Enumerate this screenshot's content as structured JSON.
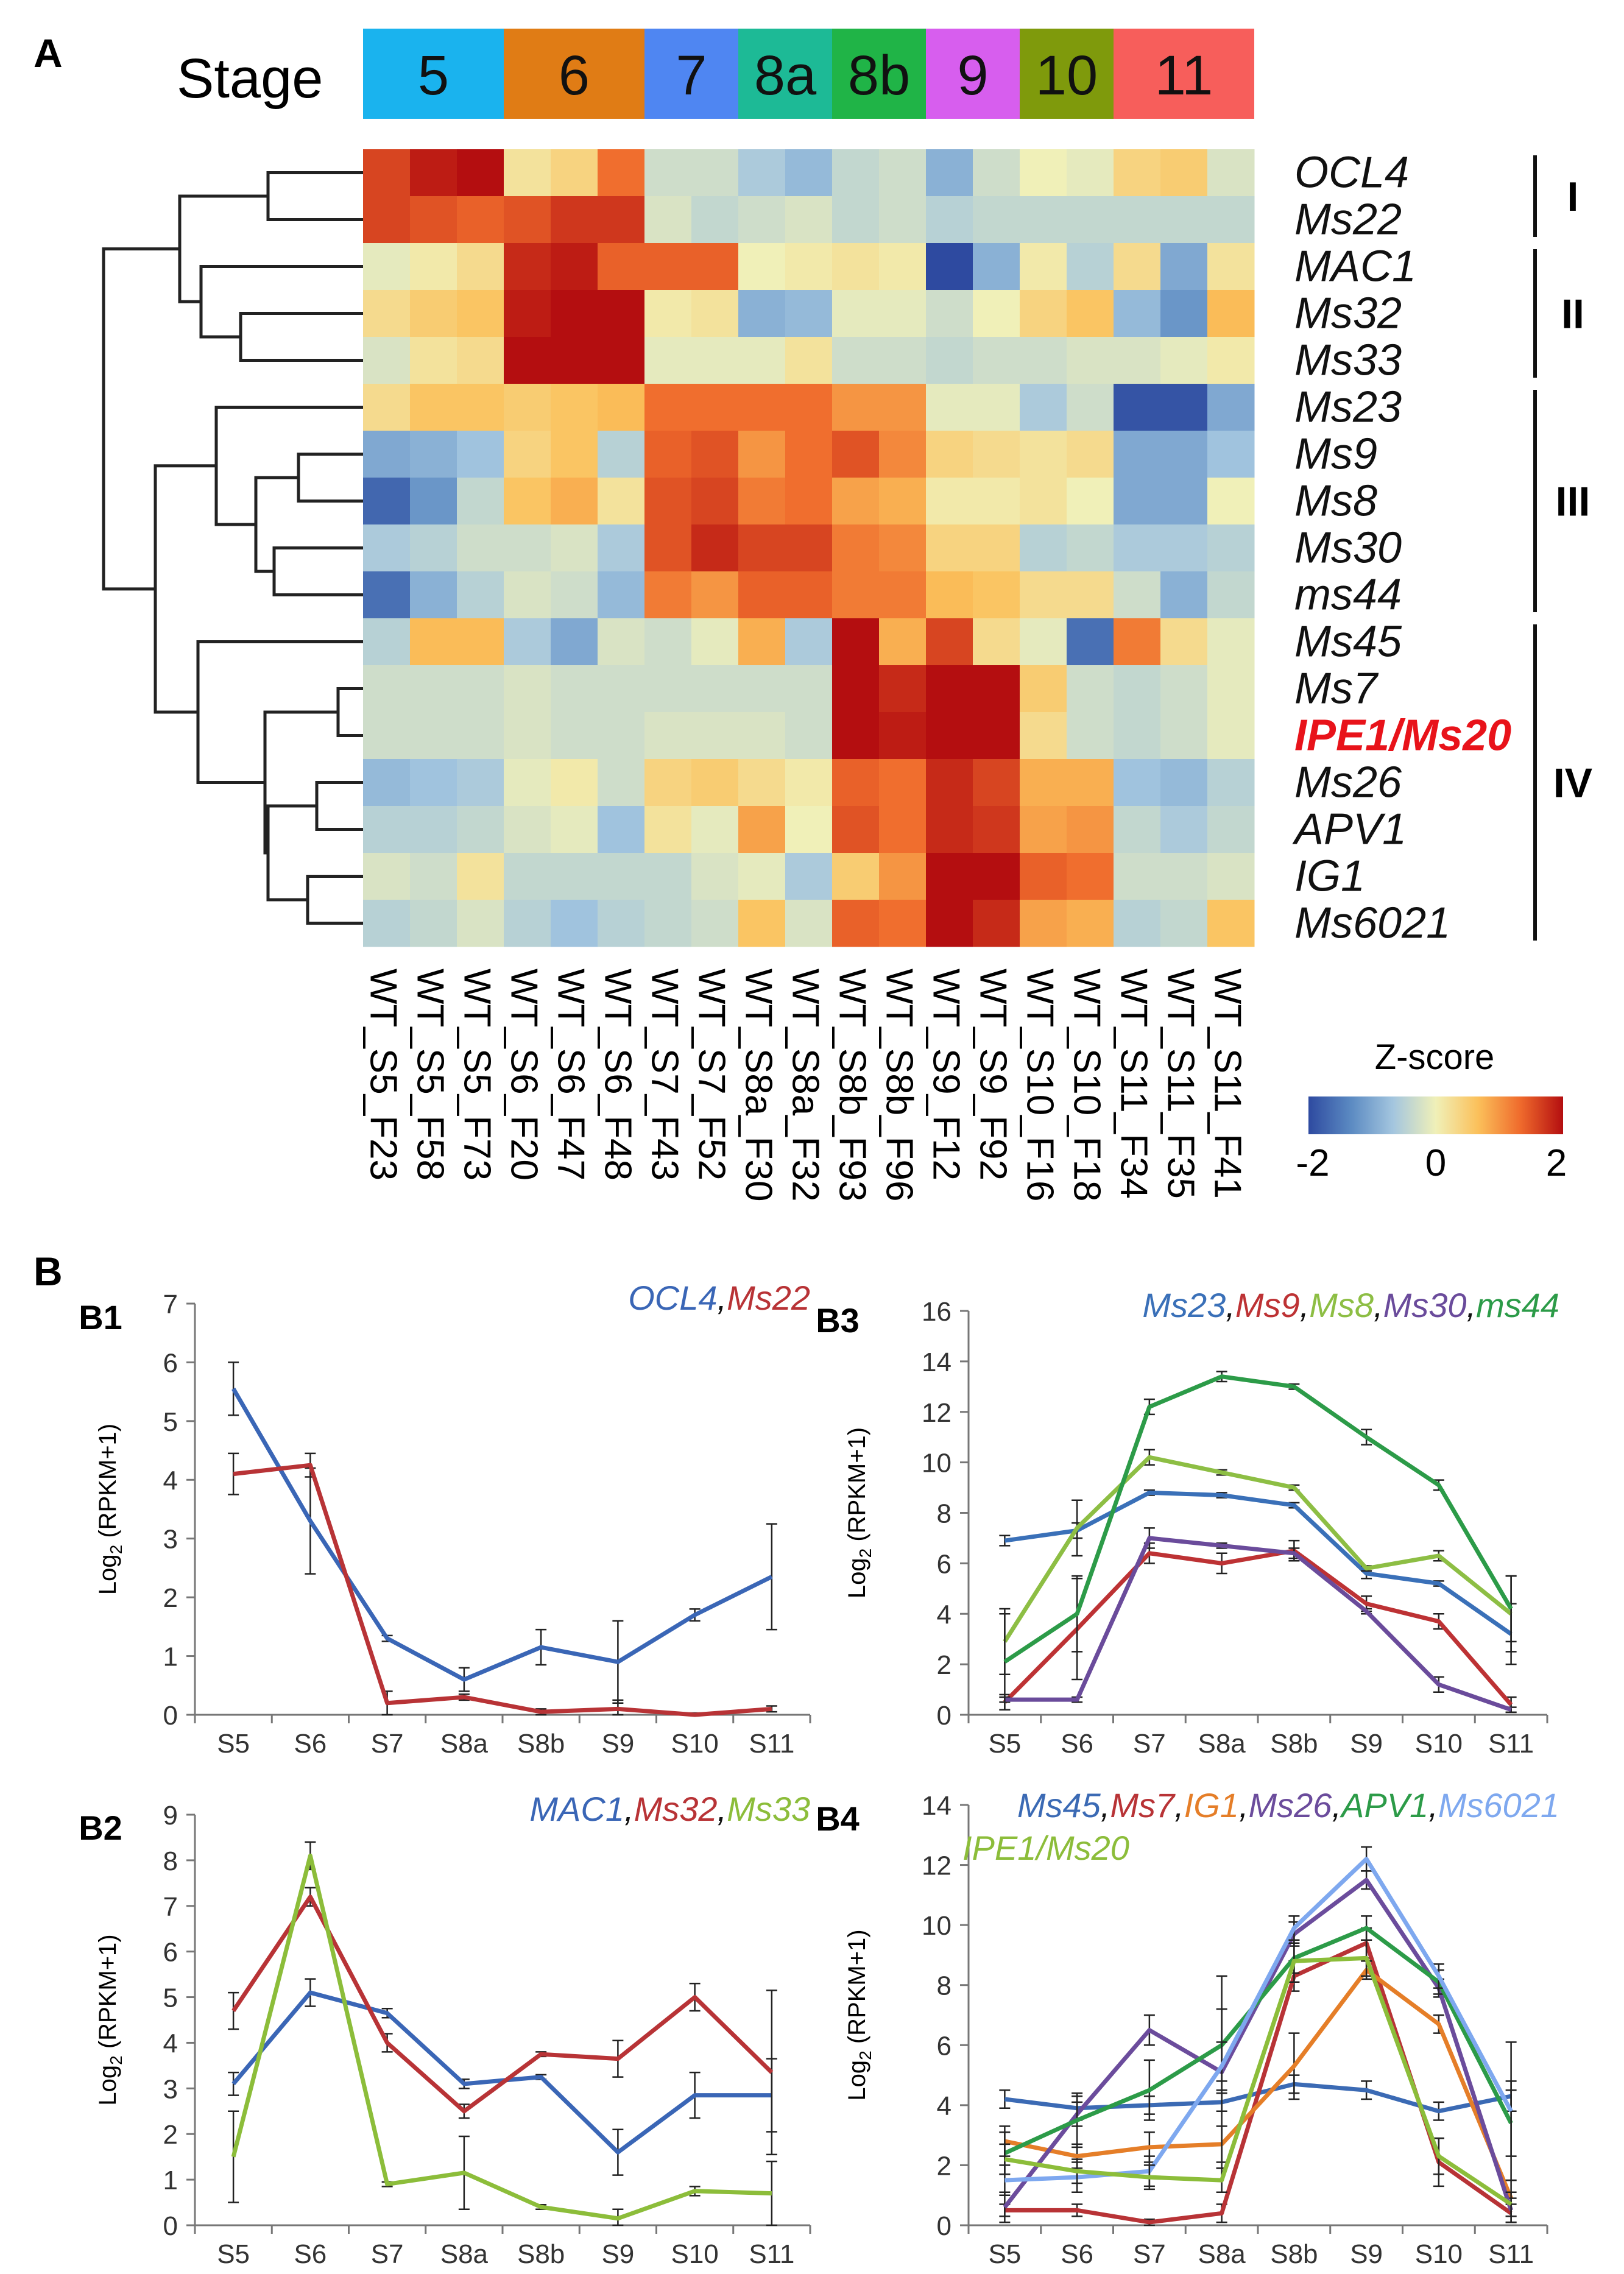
{
  "panels": {
    "a": "A",
    "b": "B"
  },
  "stage_bar": {
    "label": "Stage",
    "stages": [
      {
        "label": "5",
        "color": "#1ab3ee",
        "span": 3
      },
      {
        "label": "6",
        "color": "#e07c15",
        "span": 3
      },
      {
        "label": "7",
        "color": "#4f86f2",
        "span": 2
      },
      {
        "label": "8a",
        "color": "#1dba96",
        "span": 2
      },
      {
        "label": "8b",
        "color": "#20b447",
        "span": 2
      },
      {
        "label": "9",
        "color": "#d75eee",
        "span": 2
      },
      {
        "label": "10",
        "color": "#7f9a0c",
        "span": 2
      },
      {
        "label": "11",
        "color": "#f75e5b",
        "span": 3
      }
    ]
  },
  "heatmap": {
    "columns": [
      "WT_S5_F23",
      "WT_S5_F58",
      "WT_S5_F73",
      "WT_S6_F20",
      "WT_S6_F47",
      "WT_S6_F48",
      "WT_S7_F43",
      "WT_S7_F52",
      "WT_S8a_F30",
      "WT_S8a_F32",
      "WT_S8b_F93",
      "WT_S8b_F96",
      "WT_S9_F12",
      "WT_S9_F92",
      "WT_S10_F16",
      "WT_S10_F18",
      "WT_S11_F34",
      "WT_S11_F35",
      "WT_S11_F41"
    ],
    "rows": [
      {
        "gene": "OCL4",
        "highlight": false,
        "z": [
          1.6,
          1.9,
          2.0,
          0.2,
          0.4,
          1.3,
          -0.3,
          -0.3,
          -0.6,
          -0.8,
          -0.4,
          -0.3,
          -0.9,
          -0.3,
          0.0,
          -0.1,
          0.4,
          0.5,
          -0.2
        ]
      },
      {
        "gene": "Ms22",
        "highlight": false,
        "z": [
          1.6,
          1.5,
          1.4,
          1.5,
          1.7,
          1.7,
          -0.2,
          -0.4,
          -0.3,
          -0.2,
          -0.4,
          -0.3,
          -0.5,
          -0.4,
          -0.4,
          -0.4,
          -0.4,
          -0.4,
          -0.4
        ]
      },
      {
        "gene": "MAC1",
        "highlight": false,
        "z": [
          -0.1,
          0.1,
          0.3,
          1.8,
          1.9,
          1.4,
          1.4,
          1.4,
          0.0,
          0.1,
          0.2,
          0.1,
          -2.0,
          -0.9,
          0.1,
          -0.5,
          0.3,
          -1.0,
          0.2
        ]
      },
      {
        "gene": "Ms32",
        "highlight": false,
        "z": [
          0.3,
          0.5,
          0.6,
          1.9,
          2.0,
          2.0,
          0.1,
          0.2,
          -0.9,
          -0.8,
          -0.1,
          -0.1,
          -0.3,
          0.0,
          0.4,
          0.6,
          -0.8,
          -1.2,
          0.7
        ]
      },
      {
        "gene": "Ms33",
        "highlight": false,
        "z": [
          -0.2,
          0.2,
          0.3,
          2.0,
          2.0,
          2.0,
          -0.1,
          -0.1,
          -0.1,
          0.2,
          -0.3,
          -0.3,
          -0.4,
          -0.3,
          -0.3,
          -0.2,
          -0.2,
          -0.1,
          0.1
        ]
      },
      {
        "gene": "Ms23",
        "highlight": false,
        "z": [
          0.3,
          0.6,
          0.6,
          0.5,
          0.6,
          0.7,
          1.3,
          1.3,
          1.3,
          1.3,
          1.0,
          1.0,
          -0.1,
          -0.1,
          -0.6,
          -0.3,
          -1.9,
          -1.9,
          -1.0
        ]
      },
      {
        "gene": "Ms9",
        "highlight": false,
        "z": [
          -1.0,
          -0.9,
          -0.7,
          0.4,
          0.6,
          -0.5,
          1.4,
          1.5,
          1.0,
          1.3,
          1.5,
          1.1,
          0.4,
          0.3,
          0.2,
          0.3,
          -1.0,
          -1.0,
          -0.7
        ]
      },
      {
        "gene": "Ms8",
        "highlight": false,
        "z": [
          -1.7,
          -1.2,
          -0.4,
          0.6,
          0.8,
          0.2,
          1.5,
          1.6,
          1.2,
          1.3,
          0.9,
          0.8,
          0.1,
          0.1,
          0.2,
          0.0,
          -1.0,
          -1.0,
          0.0
        ]
      },
      {
        "gene": "Ms30",
        "highlight": false,
        "z": [
          -0.6,
          -0.5,
          -0.3,
          -0.3,
          -0.2,
          -0.6,
          1.5,
          1.8,
          1.6,
          1.6,
          1.2,
          1.1,
          0.4,
          0.4,
          -0.5,
          -0.4,
          -0.6,
          -0.6,
          -0.5
        ]
      },
      {
        "gene": "ms44",
        "highlight": false,
        "z": [
          -1.6,
          -0.9,
          -0.5,
          -0.2,
          -0.3,
          -0.8,
          1.2,
          1.0,
          1.4,
          1.4,
          1.2,
          1.2,
          0.7,
          0.6,
          0.3,
          0.3,
          -0.3,
          -0.9,
          -0.4
        ]
      },
      {
        "gene": "Ms45",
        "highlight": false,
        "z": [
          -0.5,
          0.7,
          0.7,
          -0.6,
          -1.0,
          -0.2,
          -0.3,
          -0.1,
          0.8,
          -0.6,
          2.0,
          0.8,
          1.6,
          0.3,
          -0.1,
          -1.6,
          1.2,
          0.3,
          -0.1
        ]
      },
      {
        "gene": "Ms7",
        "highlight": false,
        "z": [
          -0.3,
          -0.3,
          -0.3,
          -0.2,
          -0.3,
          -0.3,
          -0.3,
          -0.3,
          -0.3,
          -0.3,
          2.0,
          1.8,
          2.0,
          2.0,
          0.5,
          -0.3,
          -0.4,
          -0.3,
          -0.1
        ]
      },
      {
        "gene": "IPE1/Ms20",
        "highlight": true,
        "z": [
          -0.3,
          -0.3,
          -0.3,
          -0.2,
          -0.3,
          -0.3,
          -0.2,
          -0.2,
          -0.2,
          -0.3,
          2.0,
          1.9,
          2.0,
          2.0,
          0.3,
          -0.3,
          -0.4,
          -0.3,
          -0.1
        ]
      },
      {
        "gene": "Ms26",
        "highlight": false,
        "z": [
          -0.8,
          -0.7,
          -0.6,
          -0.1,
          0.1,
          -0.3,
          0.4,
          0.5,
          0.3,
          0.1,
          1.4,
          1.3,
          1.8,
          1.6,
          0.8,
          0.8,
          -0.7,
          -0.8,
          -0.5
        ]
      },
      {
        "gene": "APV1",
        "highlight": false,
        "z": [
          -0.5,
          -0.5,
          -0.4,
          -0.2,
          -0.1,
          -0.7,
          0.2,
          -0.1,
          0.9,
          0.0,
          1.5,
          1.3,
          1.8,
          1.7,
          0.9,
          1.0,
          -0.4,
          -0.6,
          -0.4
        ]
      },
      {
        "gene": "IG1",
        "highlight": false,
        "z": [
          -0.2,
          -0.3,
          0.2,
          -0.4,
          -0.4,
          -0.4,
          -0.4,
          -0.2,
          -0.1,
          -0.6,
          0.5,
          1.0,
          2.0,
          2.0,
          1.4,
          1.3,
          -0.3,
          -0.3,
          -0.2
        ]
      },
      {
        "gene": "Ms6021",
        "highlight": false,
        "z": [
          -0.5,
          -0.4,
          -0.2,
          -0.5,
          -0.7,
          -0.5,
          -0.4,
          -0.3,
          0.6,
          -0.2,
          1.4,
          1.3,
          2.0,
          1.8,
          0.9,
          0.8,
          -0.5,
          -0.4,
          0.6
        ]
      }
    ],
    "clusters": [
      {
        "label": "I",
        "from": 0,
        "to": 1
      },
      {
        "label": "II",
        "from": 2,
        "to": 4
      },
      {
        "label": "III",
        "from": 5,
        "to": 9
      },
      {
        "label": "IV",
        "from": 10,
        "to": 16
      }
    ],
    "colorbar": {
      "title": "Z-score",
      "min": -2,
      "mid": 0,
      "max": 2,
      "ticks": [
        "-2",
        "0",
        "2"
      ],
      "colors": [
        "#2e4aa0",
        "#5b8ac2",
        "#a4c6df",
        "#f0f0b8",
        "#fbc05a",
        "#ef6a2c",
        "#b40e10"
      ]
    }
  },
  "chart_data": [
    {
      "id": "B1",
      "type": "line",
      "title": "OCL4, Ms22",
      "xlabel": "",
      "ylabel": "Log2 (RPKM+1)",
      "ylabel_main": "Log",
      "ylabel_sub": "2",
      "ylabel_rest": " (RPKM+1)",
      "categories": [
        "S5",
        "S6",
        "S7",
        "S8a",
        "S8b",
        "S9",
        "S10",
        "S11"
      ],
      "ylim": [
        0,
        7
      ],
      "yticks": [
        0,
        1,
        2,
        3,
        4,
        5,
        6,
        7
      ],
      "series": [
        {
          "name": "OCL4",
          "color": "#3a66b6",
          "values": [
            5.55,
            3.3,
            1.3,
            0.6,
            1.15,
            0.9,
            1.7,
            2.35
          ],
          "err": [
            0.45,
            0.9,
            0.05,
            0.2,
            0.3,
            0.7,
            0.1,
            0.9
          ]
        },
        {
          "name": "Ms22",
          "color": "#b83336",
          "values": [
            4.1,
            4.25,
            0.2,
            0.3,
            0.05,
            0.1,
            0.0,
            0.1
          ],
          "err": [
            0.35,
            0.2,
            0.2,
            0.05,
            0.05,
            0.15,
            0.03,
            0.05
          ]
        }
      ]
    },
    {
      "id": "B2",
      "type": "line",
      "title": "MAC1, Ms32, Ms33",
      "xlabel": "",
      "ylabel": "Log2 (RPKM+1)",
      "ylabel_main": "Log",
      "ylabel_sub": "2",
      "ylabel_rest": " (RPKM+1)",
      "categories": [
        "S5",
        "S6",
        "S7",
        "S8a",
        "S8b",
        "S9",
        "S10",
        "S11"
      ],
      "ylim": [
        0,
        9
      ],
      "yticks": [
        0,
        1,
        2,
        3,
        4,
        5,
        6,
        7,
        8,
        9
      ],
      "series": [
        {
          "name": "MAC1",
          "color": "#3a66b6",
          "values": [
            3.1,
            5.1,
            4.65,
            3.1,
            3.25,
            1.6,
            2.85,
            2.85
          ],
          "err": [
            0.25,
            0.3,
            0.1,
            0.1,
            0.05,
            0.5,
            0.5,
            0.8
          ]
        },
        {
          "name": "Ms32",
          "color": "#b83336",
          "values": [
            4.7,
            7.2,
            4.0,
            2.5,
            3.75,
            3.65,
            5.0,
            3.35
          ],
          "err": [
            0.4,
            0.2,
            0.2,
            0.15,
            0.05,
            0.4,
            0.3,
            1.8
          ]
        },
        {
          "name": "Ms33",
          "color": "#8cbd3a",
          "values": [
            1.5,
            8.1,
            0.9,
            1.15,
            0.4,
            0.15,
            0.75,
            0.7
          ],
          "err": [
            1.0,
            0.3,
            0.05,
            0.8,
            0.05,
            0.2,
            0.1,
            0.7
          ]
        }
      ]
    },
    {
      "id": "B3",
      "type": "line",
      "title": "Ms23, Ms9, Ms8, Ms30, ms44",
      "xlabel": "",
      "ylabel": "Log2 (RPKM+1)",
      "ylabel_main": "Log",
      "ylabel_sub": "2",
      "ylabel_rest": " (RPKM+1)",
      "categories": [
        "S5",
        "S6",
        "S7",
        "S8a",
        "S8b",
        "S9",
        "S10",
        "S11"
      ],
      "ylim": [
        0,
        16
      ],
      "yticks": [
        0,
        2,
        4,
        6,
        8,
        10,
        12,
        14,
        16
      ],
      "series": [
        {
          "name": "Ms23",
          "color": "#3a70b8",
          "values": [
            6.9,
            7.3,
            8.8,
            8.7,
            8.3,
            5.6,
            5.2,
            3.2
          ],
          "err": [
            0.2,
            0.3,
            0.1,
            0.1,
            0.1,
            0.2,
            0.1,
            1.2
          ]
        },
        {
          "name": "Ms9",
          "color": "#bd3234",
          "values": [
            0.5,
            3.4,
            6.4,
            6.0,
            6.5,
            4.4,
            3.7,
            0.4
          ],
          "err": [
            0.3,
            2.0,
            0.4,
            0.4,
            0.4,
            0.3,
            0.3,
            0.3
          ]
        },
        {
          "name": "Ms8",
          "color": "#8dbe44",
          "values": [
            2.9,
            7.4,
            10.2,
            9.6,
            9.0,
            5.8,
            6.3,
            4.0
          ],
          "err": [
            1.3,
            1.1,
            0.3,
            0.1,
            0.1,
            0.1,
            0.2,
            1.5
          ]
        },
        {
          "name": "Ms30",
          "color": "#6a4b9b",
          "values": [
            0.6,
            0.6,
            7.0,
            6.7,
            6.4,
            4.1,
            1.2,
            0.2
          ],
          "err": [
            0.1,
            0.1,
            0.4,
            0.1,
            0.2,
            0.1,
            0.3,
            0.1
          ]
        },
        {
          "name": "ms44",
          "color": "#2c9b48",
          "values": [
            2.1,
            4.0,
            12.2,
            13.4,
            13.0,
            11.0,
            9.1,
            4.2
          ],
          "err": [
            1.9,
            1.5,
            0.3,
            0.2,
            0.1,
            0.3,
            0.2,
            1.3
          ]
        }
      ]
    },
    {
      "id": "B4",
      "type": "line",
      "title": "Ms45, Ms7, IG1, Ms26, APV1, Ms6021",
      "title_line2": "IPE1/Ms20",
      "xlabel": "",
      "ylabel": "Log2 (RPKM+1)",
      "ylabel_main": "Log",
      "ylabel_sub": "2",
      "ylabel_rest": " (RPKM+1)",
      "categories": [
        "S5",
        "S6",
        "S7",
        "S8a",
        "S8b",
        "S9",
        "S10",
        "S11"
      ],
      "ylim": [
        0,
        14
      ],
      "yticks": [
        0,
        2,
        4,
        6,
        8,
        10,
        12,
        14
      ],
      "series": [
        {
          "name": "Ms45",
          "color": "#3b6ab4",
          "values": [
            4.2,
            3.9,
            4.0,
            4.1,
            4.7,
            4.5,
            3.8,
            4.3
          ],
          "err": [
            0.3,
            0.4,
            0.3,
            0.3,
            0.3,
            0.3,
            0.3,
            0.5
          ]
        },
        {
          "name": "Ms7",
          "color": "#b83336",
          "values": [
            0.5,
            0.5,
            0.1,
            0.4,
            8.3,
            9.4,
            2.1,
            0.4
          ],
          "err": [
            0.2,
            0.2,
            0.1,
            0.3,
            0.5,
            0.5,
            0.8,
            0.3
          ]
        },
        {
          "name": "IG1",
          "color": "#e57e28",
          "values": [
            2.8,
            2.3,
            2.6,
            2.7,
            5.3,
            8.5,
            6.7,
            0.9
          ],
          "err": [
            0.5,
            0.4,
            0.5,
            0.6,
            1.1,
            0.3,
            0.3,
            0.6
          ]
        },
        {
          "name": "Ms26",
          "color": "#6b4c9c",
          "values": [
            0.6,
            3.7,
            6.5,
            5.1,
            9.7,
            11.5,
            7.9,
            0.5
          ],
          "err": [
            0.5,
            0.4,
            0.5,
            3.2,
            0.4,
            0.3,
            0.3,
            0.4
          ]
        },
        {
          "name": "APV1",
          "color": "#2c9b48",
          "values": [
            2.4,
            3.5,
            4.5,
            6.0,
            8.9,
            9.9,
            8.1,
            3.4
          ],
          "err": [
            0.7,
            0.9,
            1.0,
            1.2,
            0.5,
            0.4,
            0.4,
            1.1
          ]
        },
        {
          "name": "Ms6021",
          "color": "#7ea8ef",
          "values": [
            1.5,
            1.6,
            1.8,
            5.3,
            9.9,
            12.2,
            8.3,
            3.8
          ],
          "err": [
            0.5,
            0.5,
            0.5,
            0.8,
            0.4,
            0.4,
            0.4,
            2.3
          ]
        },
        {
          "name": "IPE1/Ms20",
          "color": "#8cbd3a",
          "values": [
            2.2,
            1.8,
            1.6,
            1.5,
            8.8,
            8.9,
            2.3,
            0.7
          ],
          "err": [
            0.5,
            0.4,
            0.4,
            0.4,
            0.7,
            0.6,
            0.6,
            0.4
          ]
        }
      ]
    }
  ]
}
